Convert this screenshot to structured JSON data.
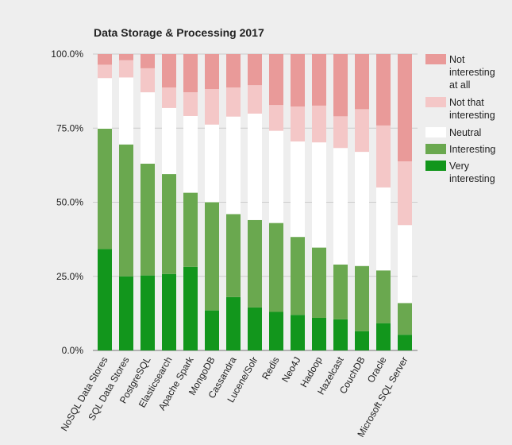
{
  "chart_data": {
    "type": "bar",
    "stacked": true,
    "normalized": true,
    "title": "Data Storage & Processing 2017",
    "xlabel": "",
    "ylabel": "",
    "ylim": [
      0,
      100
    ],
    "yticks": [
      "0.0%",
      "25.0%",
      "50.0%",
      "75.0%",
      "100.0%"
    ],
    "grid": true,
    "legend_position": "right",
    "categories": [
      "NoSQL Data Stores",
      "SQL Data Stores",
      "PostgreSQL",
      "Elasticsearch",
      "Apache Spark",
      "MongoDB",
      "Cassandra",
      "Lucene/Solr",
      "Redis",
      "Neo4J",
      "Hadoop",
      "Hazelcast",
      "CouchDB",
      "Oracle",
      "Microsoft SQL Server"
    ],
    "series": [
      {
        "name": "Very interesting",
        "color": "#12961c",
        "values": [
          34.2,
          25.0,
          25.3,
          25.8,
          28.2,
          13.5,
          18.0,
          14.5,
          13.0,
          12.0,
          11.0,
          10.5,
          6.5,
          9.2,
          5.3
        ]
      },
      {
        "name": "Interesting",
        "color": "#6aa84f",
        "values": [
          40.6,
          44.5,
          37.7,
          33.7,
          25.0,
          36.5,
          28.0,
          29.5,
          30.0,
          26.3,
          23.7,
          18.5,
          22.0,
          17.8,
          10.7
        ]
      },
      {
        "name": "Neutral",
        "color": "#ffffff",
        "values": [
          17.1,
          22.6,
          24.1,
          22.3,
          25.9,
          26.2,
          32.9,
          35.9,
          31.1,
          32.2,
          35.5,
          39.3,
          38.5,
          28.0,
          26.3
        ]
      },
      {
        "name": "Not that interesting",
        "color": "#f4c7c7",
        "values": [
          4.5,
          5.8,
          8.1,
          6.9,
          8.0,
          12.0,
          9.8,
          9.6,
          8.7,
          11.8,
          12.4,
          10.7,
          14.4,
          20.9,
          21.5
        ]
      },
      {
        "name": "Not interesting at all",
        "color": "#e99a99",
        "values": [
          3.6,
          2.1,
          4.8,
          11.3,
          12.9,
          11.8,
          11.3,
          10.5,
          17.2,
          17.7,
          17.4,
          21.0,
          18.6,
          24.1,
          36.2
        ]
      }
    ],
    "legend": [
      {
        "lines": [
          "Not",
          "interesting",
          "at all"
        ],
        "color": "#e99a99"
      },
      {
        "lines": [
          "Not that",
          "interesting"
        ],
        "color": "#f4c7c7"
      },
      {
        "lines": [
          "Neutral"
        ],
        "color": "#ffffff"
      },
      {
        "lines": [
          "Interesting"
        ],
        "color": "#6aa84f"
      },
      {
        "lines": [
          "Very",
          "interesting"
        ],
        "color": "#12961c"
      }
    ]
  }
}
